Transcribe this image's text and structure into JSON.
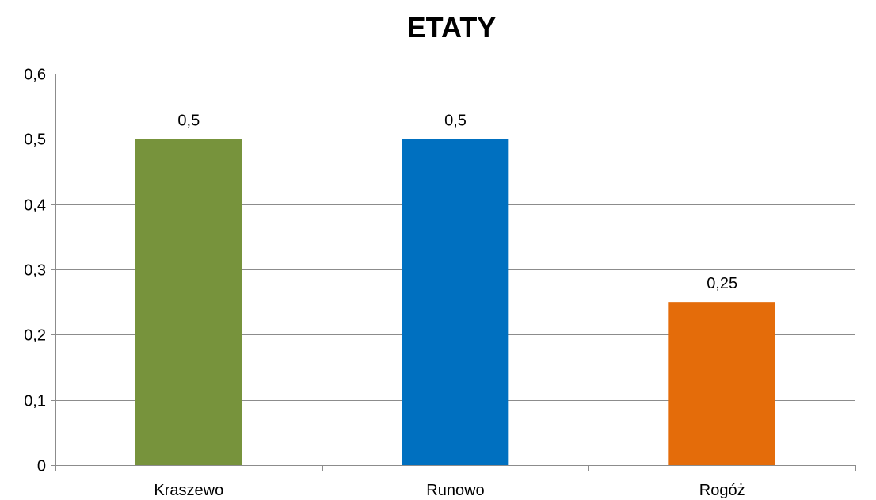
{
  "chart_data": {
    "type": "bar",
    "title": "ETATY",
    "categories": [
      "Kraszewo",
      "Runowo",
      "Rogóż"
    ],
    "values": [
      0.5,
      0.5,
      0.25
    ],
    "value_labels": [
      "0,5",
      "0,5",
      "0,25"
    ],
    "bar_colors": [
      "#77933c",
      "#0070c0",
      "#e46c0a"
    ],
    "ylim": [
      0,
      0.6
    ],
    "yticks": [
      0,
      0.1,
      0.2,
      0.3,
      0.4,
      0.5,
      0.6
    ],
    "ytick_labels": [
      "0",
      "0,1",
      "0,2",
      "0,3",
      "0,4",
      "0,5",
      "0,6"
    ],
    "xlabel": "",
    "ylabel": "",
    "grid": true,
    "legend": "none"
  }
}
